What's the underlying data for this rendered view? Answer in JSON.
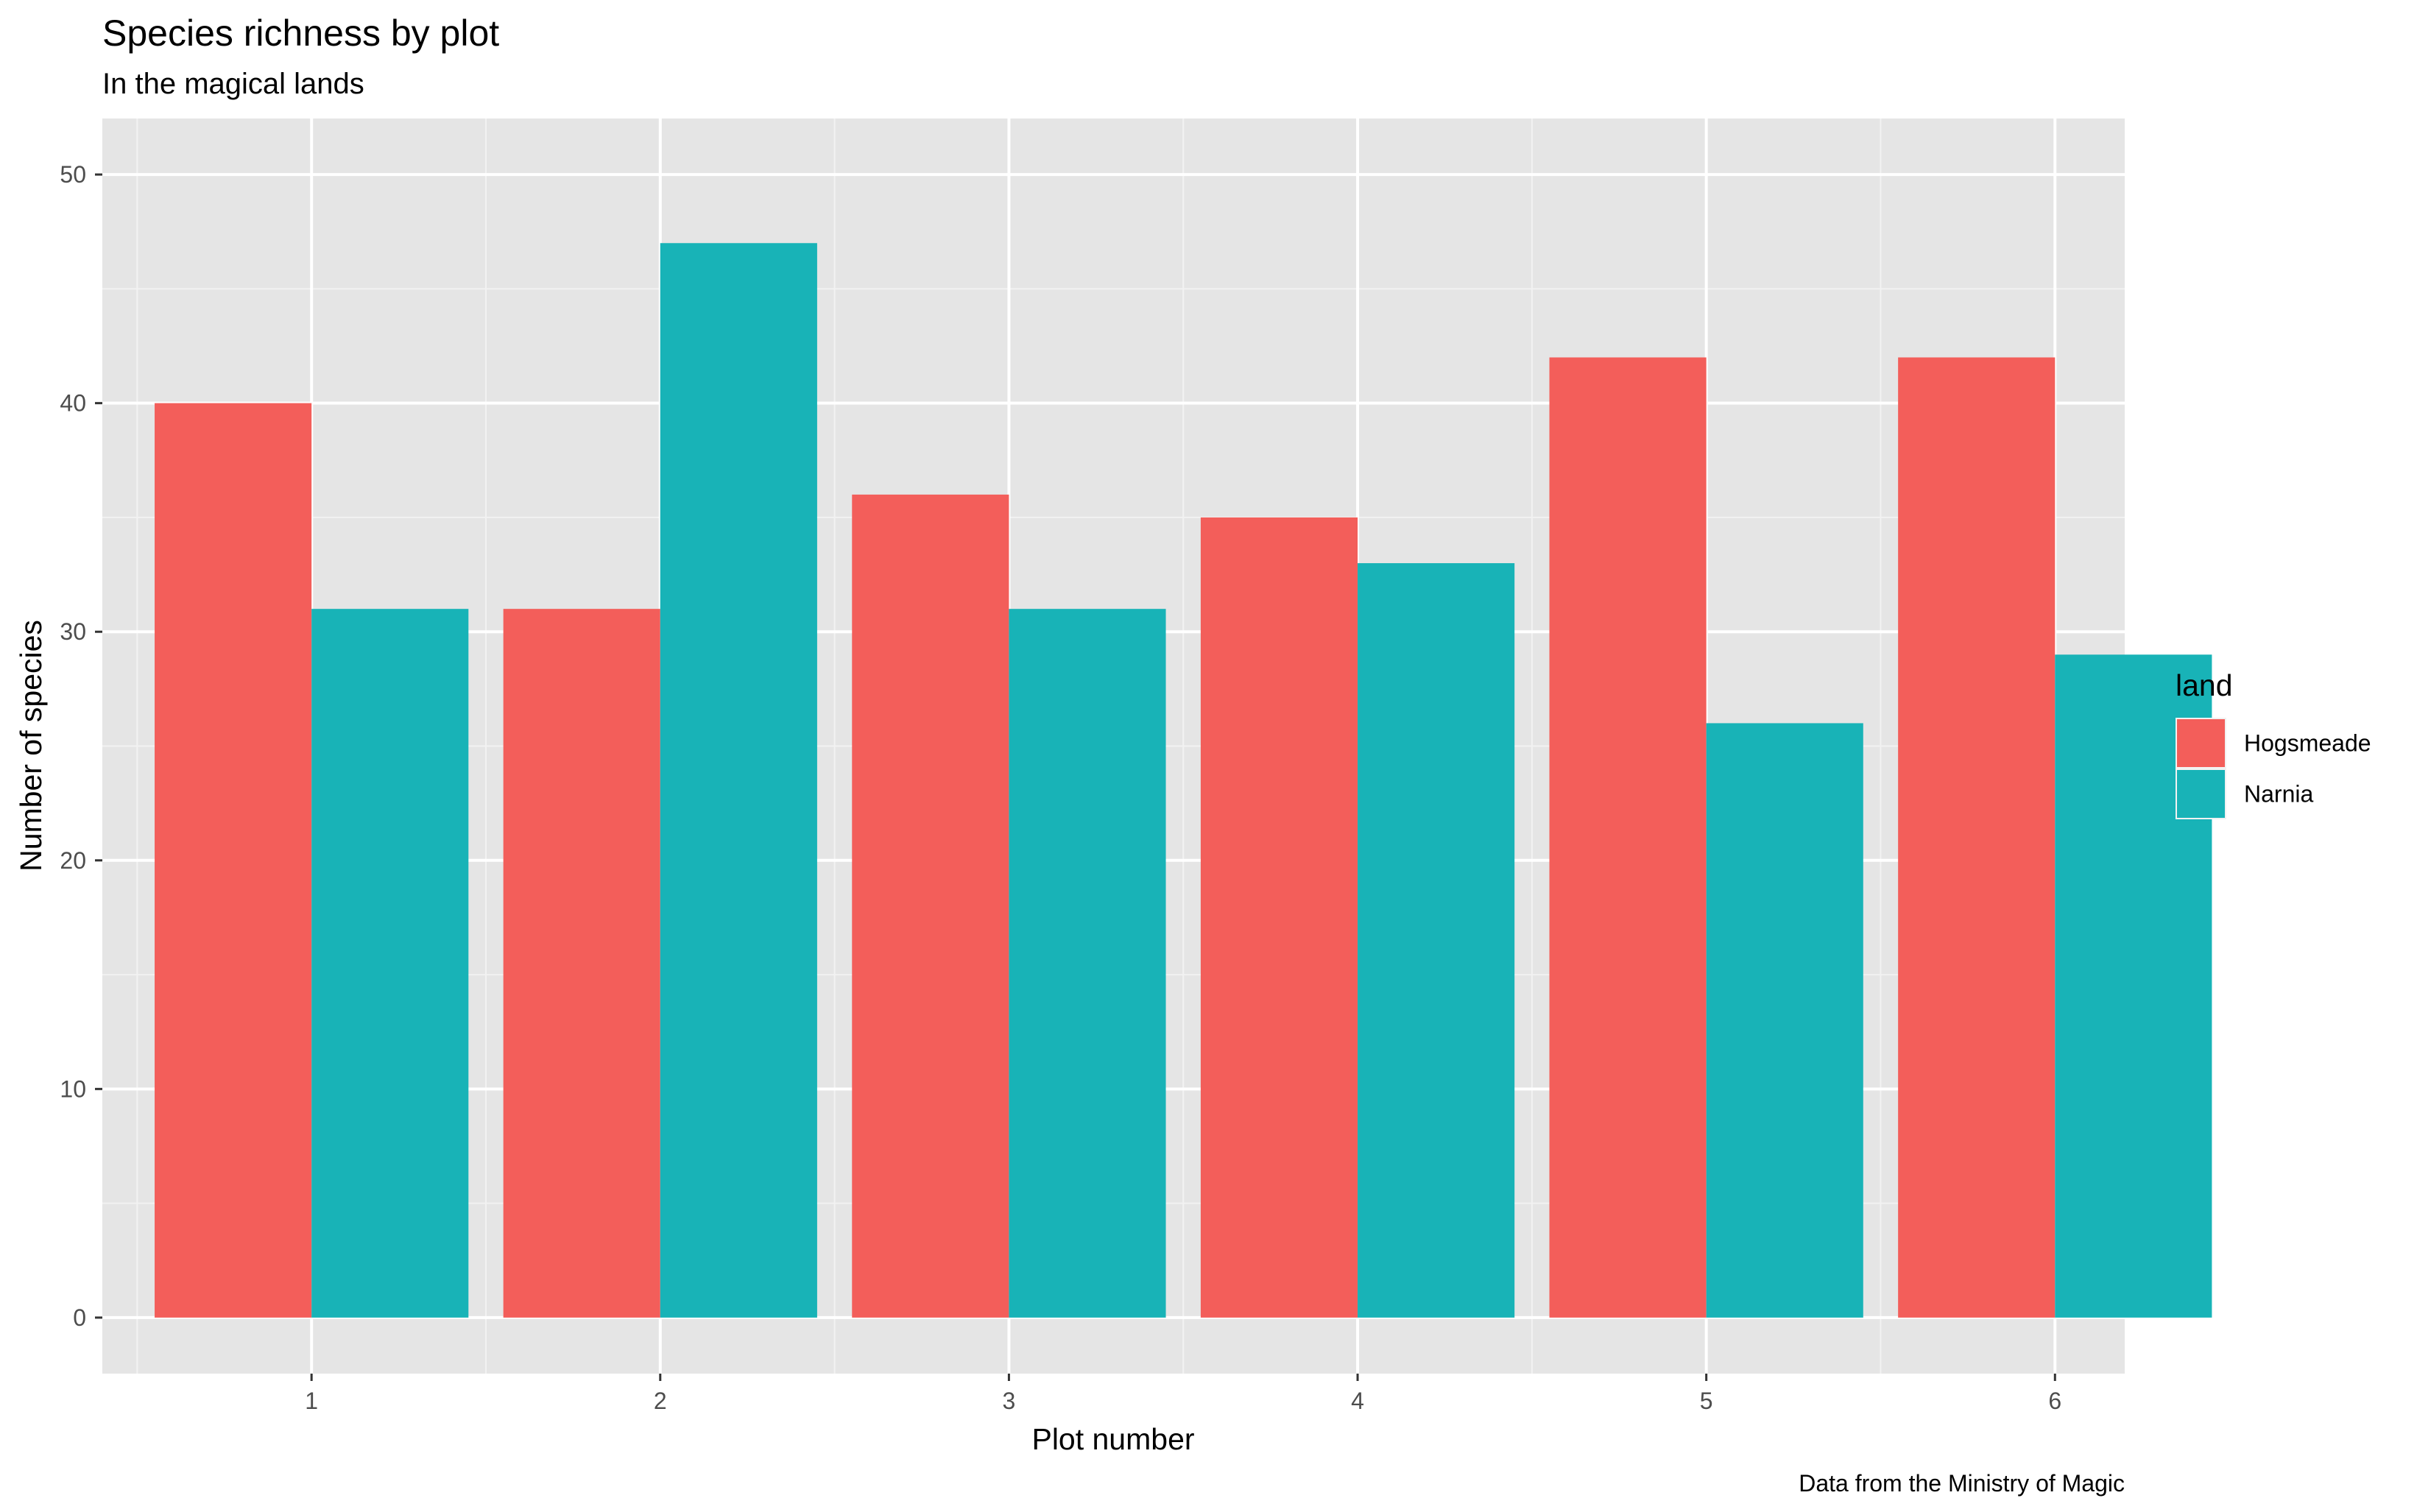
{
  "chart_data": {
    "type": "bar",
    "title": "Species richness by plot",
    "subtitle": "In the magical lands",
    "xlabel": "Plot number",
    "ylabel": "Number of species",
    "caption": "Data from the Ministry of Magic",
    "categories": [
      "1",
      "2",
      "3",
      "4",
      "5",
      "6"
    ],
    "series": [
      {
        "name": "Hogsmeade",
        "color": "#F35E5A",
        "values": [
          40,
          31,
          36,
          35,
          42,
          42
        ]
      },
      {
        "name": "Narnia",
        "color": "#18B3B7",
        "values": [
          31,
          47,
          31,
          33,
          26,
          29
        ]
      }
    ],
    "ylim": [
      -2.45,
      52.45
    ],
    "yticks": [
      0,
      10,
      20,
      30,
      40,
      50
    ],
    "legend": {
      "title": "land",
      "position": "right"
    },
    "grid": true,
    "panel_background": "#E5E5E5",
    "grid_color": "#FFFFFF"
  }
}
